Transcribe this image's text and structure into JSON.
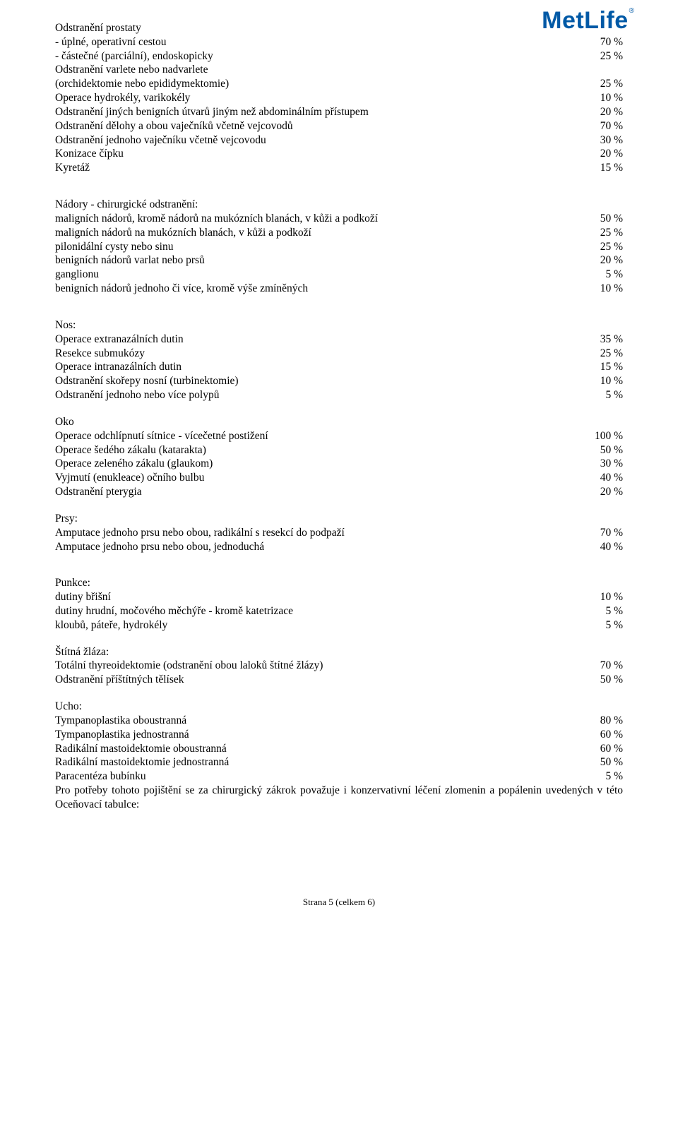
{
  "logo": {
    "text": "MetLife"
  },
  "sections": [
    {
      "heading": "Odstranění prostaty",
      "rows": [
        {
          "label": "- úplné, operativní cestou",
          "value": "70 %"
        },
        {
          "label": "- částečné (parciální), endoskopicky",
          "value": "25 %"
        },
        {
          "label": "Odstranění varlete nebo nadvarlete",
          "value": ""
        },
        {
          "label": "(orchidektomie nebo epididymektomie)",
          "value": "25 %"
        },
        {
          "label": "Operace hydrokély, varikokély",
          "value": "10 %"
        },
        {
          "label": "Odstranění jiných benigních útvarů jiným než abdominálním přístupem",
          "value": "20 %"
        },
        {
          "label": "Odstranění dělohy a obou vaječníků včetně vejcovodů",
          "value": "70 %"
        },
        {
          "label": "Odstranění jednoho vaječníku včetně vejcovodu",
          "value": "30 %"
        },
        {
          "label": "Konizace čípku",
          "value": "20 %"
        },
        {
          "label": "Kyretáž",
          "value": "15 %"
        }
      ]
    },
    {
      "heading": "Nádory - chirurgické odstranění:",
      "rows": [
        {
          "label": "maligních nádorů, kromě nádorů na mukózních blanách, v kůži a podkoží",
          "value": "50 %"
        },
        {
          "label": "maligních nádorů na mukózních blanách, v kůži a podkoží",
          "value": "25 %"
        },
        {
          "label": "pilonidální cysty nebo sinu",
          "value": "25 %"
        },
        {
          "label": "benigních nádorů varlat nebo prsů",
          "value": "20 %"
        },
        {
          "label": "ganglionu",
          "value": "5 %"
        },
        {
          "label": "benigních nádorů jednoho či více, kromě výše zmíněných",
          "value": "10 %"
        }
      ]
    },
    {
      "heading": "Nos:",
      "rows": [
        {
          "label": "Operace extranazálních dutin",
          "value": "35 %"
        },
        {
          "label": "Resekce submukózy",
          "value": "25 %"
        },
        {
          "label": "Operace intranazálních dutin",
          "value": "15 %"
        },
        {
          "label": "Odstranění skořepy nosní (turbinektomie)",
          "value": "10 %"
        },
        {
          "label": "Odstranění jednoho nebo více polypů",
          "value": "5 %"
        }
      ]
    },
    {
      "heading": "Oko",
      "nogap": true,
      "rows": [
        {
          "label": "Operace odchlípnutí sítnice - vícečetné postižení",
          "value": "100 %"
        },
        {
          "label": "Operace šedého zákalu (katarakta)",
          "value": "50 %"
        },
        {
          "label": "Operace zeleného zákalu (glaukom)",
          "value": "30 %"
        },
        {
          "label": "Vyjmutí (enukleace) očního bulbu",
          "value": "40 %"
        },
        {
          "label": "Odstranění pterygia",
          "value": "20 %"
        }
      ]
    },
    {
      "heading": "Prsy:",
      "nogap": true,
      "rows": [
        {
          "label": "Amputace jednoho prsu nebo obou, radikální s resekcí do podpaží",
          "value": "70 %"
        },
        {
          "label": "Amputace jednoho prsu nebo obou, jednoduchá",
          "value": "40 %"
        }
      ]
    },
    {
      "heading": "Punkce:",
      "rows": [
        {
          "label": "dutiny břišní",
          "value": "10 %"
        },
        {
          "label": "dutiny hrudní, močového měchýře - kromě katetrizace",
          "value": "5 %"
        },
        {
          "label": "kloubů, páteře, hydrokély",
          "value": "5 %"
        }
      ]
    },
    {
      "heading": "Štítná žláza:",
      "nogap": true,
      "rows": [
        {
          "label": "Totální thyreoidektomie (odstranění obou laloků štítné žlázy)",
          "value": "70 %"
        },
        {
          "label": "Odstranění příštítných tělísek",
          "value": "50 %"
        }
      ]
    },
    {
      "heading": "Ucho:",
      "nogap": true,
      "rows": [
        {
          "label": "Tympanoplastika oboustranná",
          "value": "80 %"
        },
        {
          "label": "Tympanoplastika jednostranná",
          "value": "60 %"
        },
        {
          "label": "Radikální mastoidektomie oboustranná",
          "value": "60 %"
        },
        {
          "label": "Radikální mastoidektomie jednostranná",
          "value": "50 %"
        },
        {
          "label": "Paracentéza bubínku",
          "value": "5 %"
        }
      ],
      "tail": "Pro potřeby tohoto pojištění se za chirurgický zákrok považuje i konzervativní léčení zlomenin a popálenin uvedených v této Oceňovací tabulce:"
    }
  ],
  "footer": "Strana 5 (celkem 6)"
}
